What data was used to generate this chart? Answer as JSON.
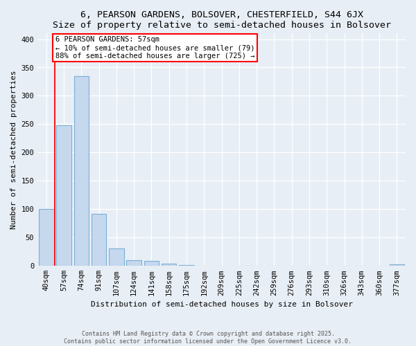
{
  "title_line1": "6, PEARSON GARDENS, BOLSOVER, CHESTERFIELD, S44 6JX",
  "title_line2": "Size of property relative to semi-detached houses in Bolsover",
  "xlabel": "Distribution of semi-detached houses by size in Bolsover",
  "ylabel": "Number of semi-detached properties",
  "categories": [
    "40sqm",
    "57sqm",
    "74sqm",
    "91sqm",
    "107sqm",
    "124sqm",
    "141sqm",
    "158sqm",
    "175sqm",
    "192sqm",
    "209sqm",
    "225sqm",
    "242sqm",
    "259sqm",
    "276sqm",
    "293sqm",
    "310sqm",
    "326sqm",
    "343sqm",
    "360sqm",
    "377sqm"
  ],
  "values": [
    100,
    248,
    335,
    92,
    31,
    10,
    9,
    4,
    2,
    0,
    0,
    0,
    0,
    0,
    0,
    0,
    0,
    0,
    0,
    0,
    3
  ],
  "bar_color": "#c5d8ee",
  "bar_edge_color": "#7bafd4",
  "highlight_color": "red",
  "property_line_x": 0.5,
  "annotation_title": "6 PEARSON GARDENS: 57sqm",
  "annotation_line1": "← 10% of semi-detached houses are smaller (79)",
  "annotation_line2": "88% of semi-detached houses are larger (725) →",
  "ylim": [
    0,
    410
  ],
  "yticks": [
    0,
    50,
    100,
    150,
    200,
    250,
    300,
    350,
    400
  ],
  "footer_line1": "Contains HM Land Registry data © Crown copyright and database right 2025.",
  "footer_line2": "Contains public sector information licensed under the Open Government Licence v3.0.",
  "bg_color": "#e8eef5",
  "plot_bg_color": "#e8eef5",
  "grid_color": "#ffffff",
  "title_fontsize": 9.5,
  "axis_fontsize": 8,
  "tick_fontsize": 7.5
}
